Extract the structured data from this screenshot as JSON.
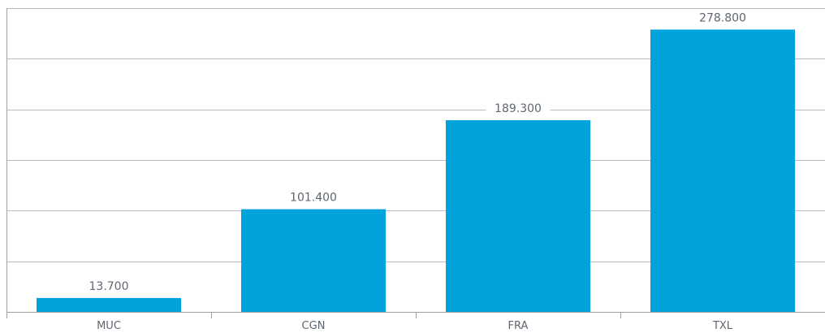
{
  "chart_data": {
    "type": "bar",
    "categories": [
      "MUC",
      "CGN",
      "FRA",
      "TXL"
    ],
    "values": [
      13.7,
      101.4,
      189.3,
      278.8
    ],
    "value_labels": [
      "13.700",
      "101.400",
      "189.300",
      "278.800"
    ],
    "ylim": [
      0,
      300
    ],
    "grid": true,
    "legend": "none"
  },
  "colors": {
    "bar": "#00a3dc",
    "grid": "#b9bcc0",
    "axis": "#9aa0a6",
    "text": "#5f6670"
  }
}
